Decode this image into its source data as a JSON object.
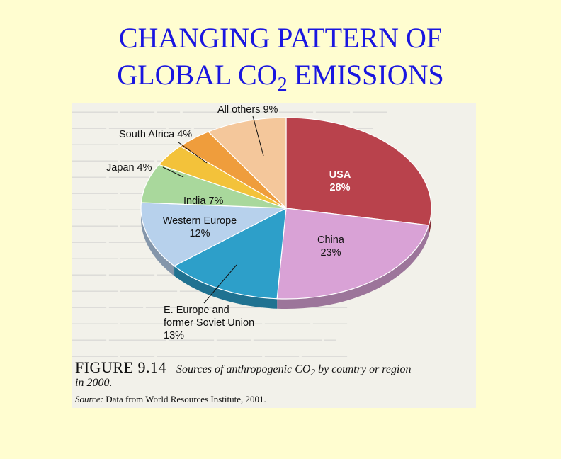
{
  "slide": {
    "title_line1": "CHANGING PATTERN OF",
    "title_line2_pre": "GLOBAL CO",
    "title_line2_sub": "2",
    "title_line2_post": " EMISSIONS"
  },
  "figure": {
    "number": "FIGURE 9.14",
    "caption_pre": "Sources of anthropogenic CO",
    "caption_sub": "2",
    "caption_post": " by country or region",
    "caption_year": "in 2000.",
    "source_label": "Source:",
    "source_text": " Data from World Resources Institute, 2001."
  },
  "chart_data": {
    "type": "pie",
    "title": "",
    "slices": [
      {
        "label": "USA",
        "value": 28,
        "pct_text": "28%",
        "color": "#b9424c"
      },
      {
        "label": "China",
        "value": 23,
        "pct_text": "23%",
        "color": "#d9a2d6"
      },
      {
        "label": "E. Europe and former Soviet Union",
        "label_lines": [
          "E. Europe and",
          "former Soviet Union",
          "13%"
        ],
        "value": 13,
        "pct_text": "13%",
        "color": "#2d9fc9"
      },
      {
        "label": "Western Europe",
        "label_lines": [
          "Western Europe",
          "12%"
        ],
        "value": 12,
        "pct_text": "12%",
        "color": "#b7d1ec"
      },
      {
        "label": "India",
        "label_lines": [
          "India 7%"
        ],
        "value": 7,
        "pct_text": "7%",
        "color": "#a9d89c"
      },
      {
        "label": "Japan",
        "label_lines": [
          "Japan 4%"
        ],
        "value": 4,
        "pct_text": "4%",
        "color": "#f3c23a"
      },
      {
        "label": "South Africa",
        "label_lines": [
          "South Africa 4%"
        ],
        "value": 4,
        "pct_text": "4%",
        "color": "#ef9d3c"
      },
      {
        "label": "All others",
        "label_lines": [
          "All others 9%"
        ],
        "value": 9,
        "pct_text": "9%",
        "color": "#f4c79b"
      }
    ]
  }
}
